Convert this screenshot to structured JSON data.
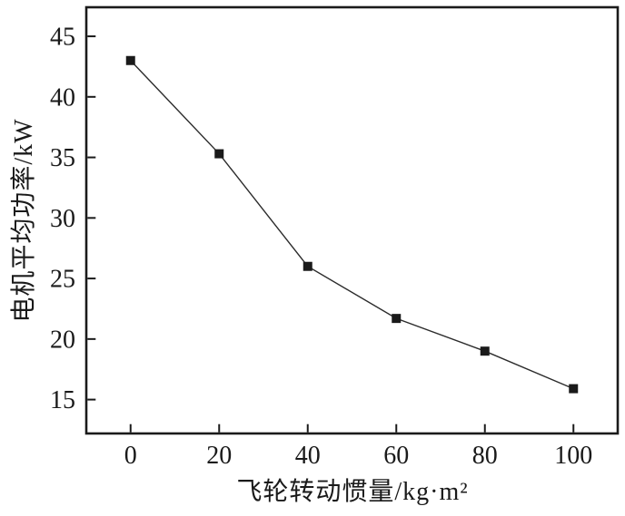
{
  "chart_data": {
    "type": "line",
    "x": [
      0,
      20,
      40,
      60,
      80,
      100
    ],
    "series": [
      {
        "name": "电机平均功率",
        "values": [
          43.0,
          35.3,
          26.0,
          21.7,
          19.0,
          15.9
        ]
      }
    ],
    "title": "",
    "xlabel": "飞轮转动惯量/kg·m²",
    "ylabel": "电机平均功率/kW",
    "xticks": [
      0,
      20,
      40,
      60,
      80,
      100
    ],
    "yticks": [
      15,
      20,
      25,
      30,
      35,
      40,
      45
    ],
    "xlim": [
      -10,
      110
    ],
    "ylim": [
      12.2,
      47.4
    ],
    "grid": false,
    "legend_position": "none",
    "marker": "square",
    "line_color": "#2b2b2b",
    "marker_color": "#1a1a1a",
    "axis_color": "#1a1a1a",
    "background_color": "#ffffff"
  }
}
